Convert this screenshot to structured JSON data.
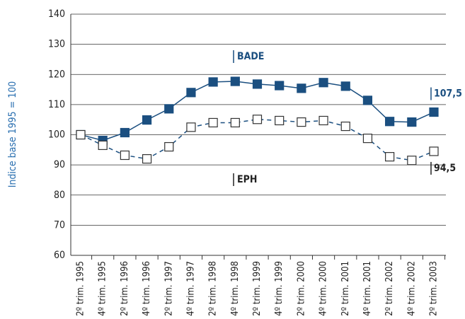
{
  "chart_data": {
    "type": "line",
    "y_label": "Indice base 1995 = 100",
    "categories": [
      "2º trim. 1995",
      "4º trim. 1995",
      "2º trim. 1996",
      "4º trim. 1996",
      "2º trim. 1997",
      "4º trim. 1997",
      "2º trim. 1998",
      "4º trim. 1998",
      "2º trim. 1999",
      "4º trim. 1999",
      "2º trim. 2000",
      "4º trim. 2000",
      "2º trim. 2001",
      "4º trim. 2001",
      "2º trim. 2002",
      "4º trim. 2002",
      "2º trim. 2003"
    ],
    "series": [
      {
        "name": "BADE",
        "color": "#1b4f80",
        "marker_fill": "#1b4f80",
        "dashed": false,
        "values": [
          100,
          98.1,
          100.7,
          104.9,
          108.6,
          114,
          117.5,
          117.7,
          116.8,
          116.3,
          115.4,
          117.3,
          116.1,
          111.4,
          104.4,
          104.2,
          107.5
        ],
        "value_labels": [
          null,
          null,
          null,
          null,
          null,
          null,
          null,
          null,
          null,
          null,
          null,
          null,
          null,
          null,
          null,
          null,
          "107,5"
        ]
      },
      {
        "name": "EPH",
        "color": "#1b4f80",
        "marker_fill": "#ffffff",
        "dashed": true,
        "values": [
          100,
          96.5,
          93.2,
          92,
          96,
          102.5,
          104,
          104,
          105.1,
          104.7,
          104.2,
          104.7,
          102.8,
          98.8,
          92.7,
          91.5,
          94.5
        ],
        "value_labels": [
          null,
          null,
          null,
          null,
          null,
          null,
          null,
          null,
          null,
          null,
          null,
          null,
          null,
          null,
          null,
          null,
          "94,5"
        ]
      }
    ],
    "ylim": [
      60,
      140
    ],
    "yticks": [
      60,
      70,
      80,
      90,
      100,
      110,
      120,
      130,
      140
    ],
    "grid": true
  }
}
